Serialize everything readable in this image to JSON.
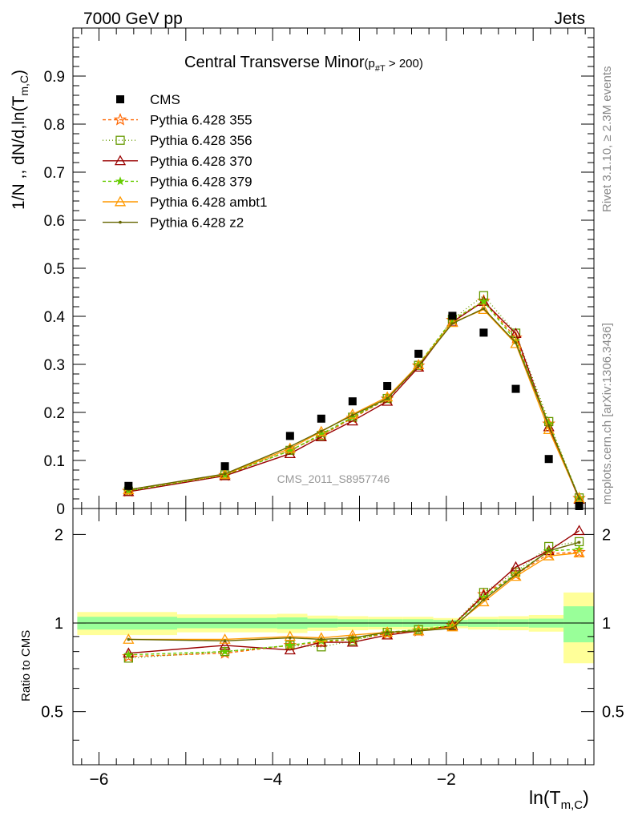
{
  "header": {
    "left": "7000 GeV pp",
    "right": "Jets"
  },
  "side_labels": {
    "rivet": "Rivet 3.1.10, ≥ 2.3M events",
    "mcplots": "mcplots.cern.ch [arXiv:1306.3436]"
  },
  "chart_data": {
    "type": "scatter",
    "title": "Central Transverse Minor",
    "title_sub": "(p",
    "title_sub_index": "#T",
    "title_sub_tail": " > 200)",
    "ylabel_main": "1/N ,, dN/d,ln(T",
    "ylabel_main_sub": "m,C",
    "ylabel_main_tail": ")",
    "ylabel_ratio": "Ratio to CMS",
    "xlabel": "ln(T",
    "xlabel_sub": "m,C",
    "xlabel_tail": ")",
    "watermark": "CMS_2011_S8957746",
    "xlim": [
      -6.3,
      -0.3
    ],
    "ylim_main": [
      0,
      1.0
    ],
    "ylim_ratio": [
      0.33,
      2.45
    ],
    "ratio_scale": "log",
    "x_ticks": [
      "−6",
      "−4",
      "−2"
    ],
    "x_tick_values": [
      -6,
      -4,
      -2
    ],
    "y_ticks_main": [
      "0",
      "0.1",
      "0.2",
      "0.3",
      "0.4",
      "0.5",
      "0.6",
      "0.7",
      "0.8",
      "0.9"
    ],
    "y_tick_values_main": [
      0,
      0.1,
      0.2,
      0.3,
      0.4,
      0.5,
      0.6,
      0.7,
      0.8,
      0.9
    ],
    "y_ticks_ratio": [
      "0.5",
      "1",
      "2"
    ],
    "y_tick_values_ratio": [
      0.5,
      1,
      2
    ],
    "bins": [
      -6.25,
      -5.1,
      -3.95,
      -3.6,
      -3.25,
      -2.9,
      -2.5,
      -2.15,
      -1.75,
      -1.4,
      -1.05,
      -0.65,
      -0.3
    ],
    "x": [
      -5.66,
      -4.55,
      -3.8,
      -3.44,
      -3.08,
      -2.68,
      -2.32,
      -1.93,
      -1.57,
      -1.2,
      -0.82,
      -0.47
    ],
    "data": {
      "name": "CMS",
      "values": [
        0.047,
        0.088,
        0.151,
        0.187,
        0.223,
        0.255,
        0.322,
        0.401,
        0.366,
        0.249,
        0.103,
        0.005
      ],
      "band_inner": [
        0.05,
        0.04,
        0.045,
        0.035,
        0.03,
        0.03,
        0.03,
        0.025,
        0.03,
        0.03,
        0.035,
        0.14
      ],
      "band_outer": [
        0.09,
        0.07,
        0.075,
        0.06,
        0.055,
        0.05,
        0.05,
        0.04,
        0.05,
        0.055,
        0.065,
        0.27
      ]
    },
    "series": [
      {
        "name": "Pythia 6.428 355",
        "color": "#ff6600",
        "dash": "4,3",
        "marker": "star-open",
        "values": [
          0.036,
          0.069,
          0.121,
          0.152,
          0.188,
          0.228,
          0.297,
          0.392,
          0.432,
          0.355,
          0.176,
          0.021
        ],
        "ratio": [
          0.77,
          0.79,
          0.84,
          0.86,
          0.88,
          0.92,
          0.94,
          0.98,
          1.25,
          1.46,
          1.72,
          1.74
        ]
      },
      {
        "name": "Pythia 6.428 356",
        "color": "#669900",
        "dash": "1,3",
        "marker": "square-open",
        "values": [
          0.036,
          0.07,
          0.121,
          0.152,
          0.19,
          0.229,
          0.298,
          0.394,
          0.443,
          0.365,
          0.181,
          0.022
        ],
        "ratio": [
          0.76,
          0.8,
          0.84,
          0.83,
          0.87,
          0.93,
          0.95,
          0.98,
          1.27,
          1.49,
          1.82,
          1.89
        ]
      },
      {
        "name": "Pythia 6.428 370",
        "color": "#990000",
        "dash": "",
        "marker": "triangle-open",
        "values": [
          0.035,
          0.068,
          0.114,
          0.149,
          0.182,
          0.223,
          0.294,
          0.388,
          0.431,
          0.364,
          0.17,
          0.019
        ],
        "ratio": [
          0.79,
          0.84,
          0.81,
          0.86,
          0.86,
          0.91,
          0.94,
          0.98,
          1.24,
          1.55,
          1.76,
          2.06
        ]
      },
      {
        "name": "Pythia 6.428 379",
        "color": "#66cc00",
        "dash": "4,3",
        "marker": "star",
        "values": [
          0.037,
          0.07,
          0.12,
          0.155,
          0.19,
          0.229,
          0.3,
          0.392,
          0.431,
          0.349,
          0.176,
          0.022
        ],
        "ratio": [
          0.78,
          0.8,
          0.84,
          0.87,
          0.88,
          0.93,
          0.95,
          0.98,
          1.22,
          1.47,
          1.76,
          1.78
        ]
      },
      {
        "name": "Pythia 6.428 ambt1",
        "color": "#ff9900",
        "dash": "",
        "marker": "triangle-open",
        "values": [
          0.039,
          0.071,
          0.125,
          0.16,
          0.196,
          0.232,
          0.299,
          0.387,
          0.414,
          0.343,
          0.164,
          0.021
        ],
        "ratio": [
          0.88,
          0.88,
          0.9,
          0.89,
          0.91,
          0.93,
          0.94,
          0.97,
          1.18,
          1.44,
          1.69,
          1.73
        ]
      },
      {
        "name": "Pythia 6.428 z2",
        "color": "#666600",
        "dash": "",
        "marker": "dot",
        "values": [
          0.039,
          0.072,
          0.129,
          0.161,
          0.194,
          0.229,
          0.297,
          0.385,
          0.416,
          0.345,
          0.173,
          0.021
        ],
        "ratio": [
          0.88,
          0.87,
          0.89,
          0.88,
          0.89,
          0.93,
          0.94,
          0.96,
          1.2,
          1.46,
          1.76,
          1.88
        ]
      }
    ],
    "legend_placement": "top-left"
  }
}
